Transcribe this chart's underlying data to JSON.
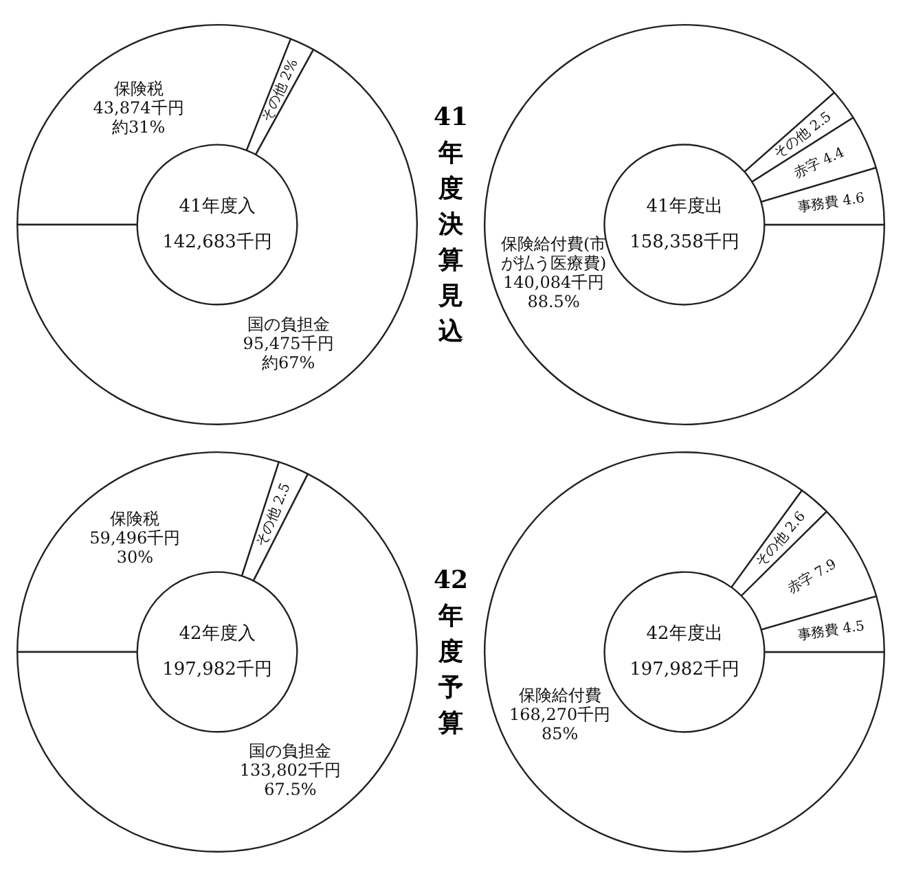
{
  "chart_data": [
    {
      "type": "donut",
      "title": "41年度決算見込",
      "categories": [
        "保険税",
        "その他",
        "国の負担金"
      ],
      "values": [
        31,
        2,
        67
      ],
      "value_labels": [
        "43,874千円約31%",
        "2%",
        "95,475千円約67%"
      ],
      "colors": [
        "#ffffff",
        "#ffffff",
        "#ffffff"
      ],
      "annotations": [
        "41年度入",
        "142,683千円"
      ]
    },
    {
      "type": "donut",
      "categories": [
        "保険給付費(市が払う医療費)",
        "その他",
        "赤字",
        "事務費"
      ],
      "values": [
        88.5,
        2.5,
        4.4,
        4.6
      ],
      "value_labels": [
        "140,084千円\n88.5%",
        "2.5",
        "4.4",
        "4.6"
      ],
      "colors": [
        "#ffffff",
        "#ffffff",
        "#ffffff",
        "#ffffff"
      ],
      "annotations": [
        "41年度出",
        "158,358千円"
      ]
    },
    {
      "type": "donut",
      "title": "42年度予算",
      "categories": [
        "保険税",
        "その他",
        "国の負担金"
      ],
      "values": [
        30,
        2.5,
        67.5
      ],
      "value_labels": [
        "59,496千円\n30%",
        "2.5",
        "133,802千円\n67.5%"
      ],
      "colors": [
        "#ffffff",
        "#ffffff",
        "#ffffff"
      ],
      "annotations": [
        "42年度入",
        "197,982千円"
      ]
    },
    {
      "type": "donut",
      "categories": [
        "保険給付費",
        "その他",
        "赤字",
        "事務費"
      ],
      "values": [
        85,
        2.6,
        7.9,
        4.5
      ],
      "value_labels": [
        "168,270千円\n85%",
        "2.6",
        "7.9",
        "4.5"
      ],
      "colors": [
        "#ffffff",
        "#ffffff",
        "#ffffff",
        "#ffffff"
      ],
      "annotations": [
        "42年度出",
        "197,982千円"
      ]
    }
  ]
}
